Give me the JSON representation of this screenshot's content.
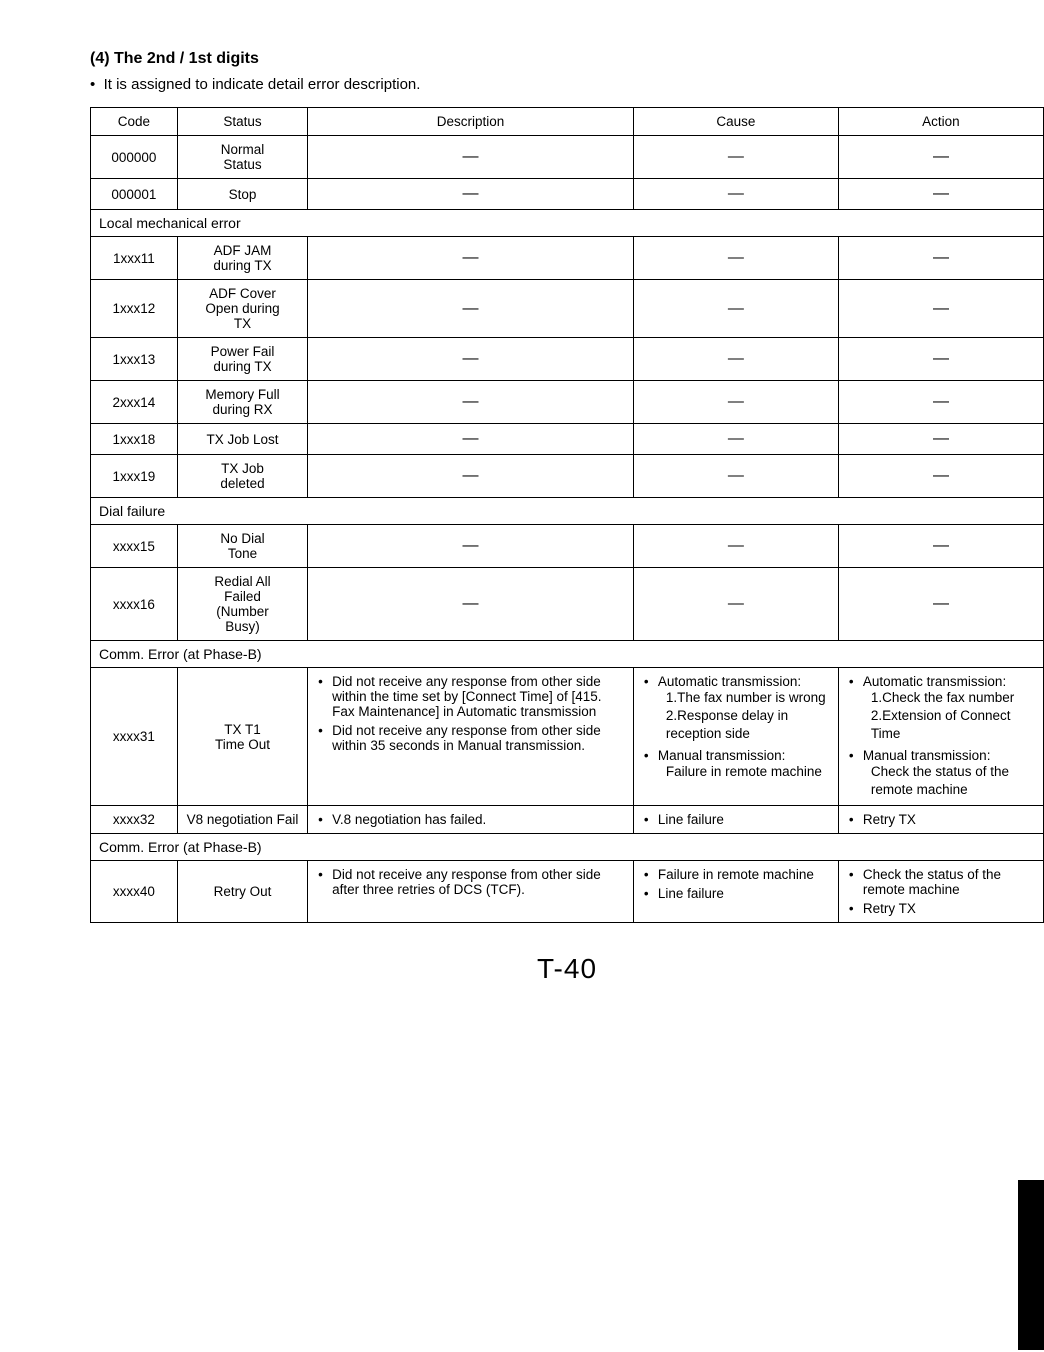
{
  "heading": "(4)    The 2nd / 1st digits",
  "intro_bullet": "It is assigned to indicate detail error description.",
  "columns": [
    "Code",
    "Status",
    "Description",
    "Cause",
    "Action"
  ],
  "dash": "—",
  "sections": {
    "local_mech": "Local mechanical error",
    "dial_fail": "Dial failure",
    "comm_err_b": "Comm. Error (at Phase-B)"
  },
  "rows": {
    "r000000": {
      "code": "000000",
      "status": "Normal\nStatus"
    },
    "r000001": {
      "code": "000001",
      "status": "Stop"
    },
    "r1xxx11": {
      "code": "1xxx11",
      "status": "ADF JAM\nduring TX"
    },
    "r1xxx12": {
      "code": "1xxx12",
      "status": "ADF Cover\nOpen during\nTX"
    },
    "r1xxx13": {
      "code": "1xxx13",
      "status": "Power Fail\nduring TX"
    },
    "r2xxx14": {
      "code": "2xxx14",
      "status": "Memory Full\nduring RX"
    },
    "r1xxx18": {
      "code": "1xxx18",
      "status": "TX Job Lost"
    },
    "r1xxx19": {
      "code": "1xxx19",
      "status": "TX Job\ndeleted"
    },
    "rxxxx15": {
      "code": "xxxx15",
      "status": "No Dial\nTone"
    },
    "rxxxx16": {
      "code": "xxxx16",
      "status": "Redial All\nFailed\n(Number\nBusy)"
    },
    "rxxxx31": {
      "code": "xxxx31",
      "status": "TX T1\nTime Out",
      "desc_b1": "Did not receive any response from other side within the time set by [Connect Time] of [415. Fax Maintenance] in Automatic transmission",
      "desc_b2": "Did not receive any response from other side within 35 seconds in Manual transmission.",
      "cause_b1_head": "Automatic transmission:",
      "cause_b1_l1": "1.The fax number is wrong",
      "cause_b1_l2": "2.Response delay in reception side",
      "cause_b2_head": "Manual transmission:",
      "cause_b2_l1": "Failure in remote machine",
      "action_b1_head": "Automatic transmission:",
      "action_b1_l1": "1.Check the fax number",
      "action_b1_l2": "2.Extension of Connect Time",
      "action_b2_head": "Manual transmission:",
      "action_b2_l1": "Check the status of the remote machine"
    },
    "rxxxx32": {
      "code": "xxxx32",
      "status": "V8 negotiation Fail",
      "desc_b1": "V.8 negotiation has failed.",
      "cause_b1": "Line failure",
      "action_b1": "Retry TX"
    },
    "rxxxx40": {
      "code": "xxxx40",
      "status": "Retry Out",
      "desc_b1": "Did not receive any response from other side after three retries of DCS (TCF).",
      "cause_b1": "Failure in remote machine",
      "cause_b2": "Line failure",
      "action_b1": "Check the status of the remote machine",
      "action_b2": "Retry TX"
    }
  },
  "page_number": "T-40"
}
